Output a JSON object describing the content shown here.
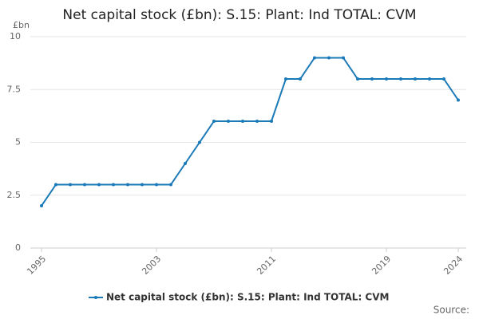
{
  "chart_data": {
    "type": "line",
    "title": "Net capital stock (£bn): S.15: Plant: Ind TOTAL: CVM",
    "y_unit_label": "£bn",
    "source": "Source:",
    "x": [
      1995,
      1996,
      1997,
      1998,
      1999,
      2000,
      2001,
      2002,
      2003,
      2004,
      2005,
      2006,
      2007,
      2008,
      2009,
      2010,
      2011,
      2012,
      2013,
      2014,
      2015,
      2016,
      2017,
      2018,
      2019,
      2020,
      2021,
      2022,
      2023,
      2024
    ],
    "series": [
      {
        "name": "Net capital stock (£bn): S.15: Plant: Ind TOTAL: CVM",
        "color": "#1a7ab8",
        "values": [
          2,
          3,
          3,
          3,
          3,
          3,
          3,
          3,
          3,
          3,
          4,
          5,
          6,
          6,
          6,
          6,
          6,
          8,
          8,
          9,
          9,
          9,
          8,
          8,
          8,
          8,
          8,
          8,
          8,
          7
        ]
      }
    ],
    "xlim": [
      1995,
      2024
    ],
    "xticks": [
      1995,
      2003,
      2011,
      2019,
      2024
    ],
    "ylim": [
      0,
      10
    ],
    "yticks": [
      0,
      2.5,
      5,
      7.5,
      10
    ],
    "grid": true,
    "legend": "bottom"
  }
}
